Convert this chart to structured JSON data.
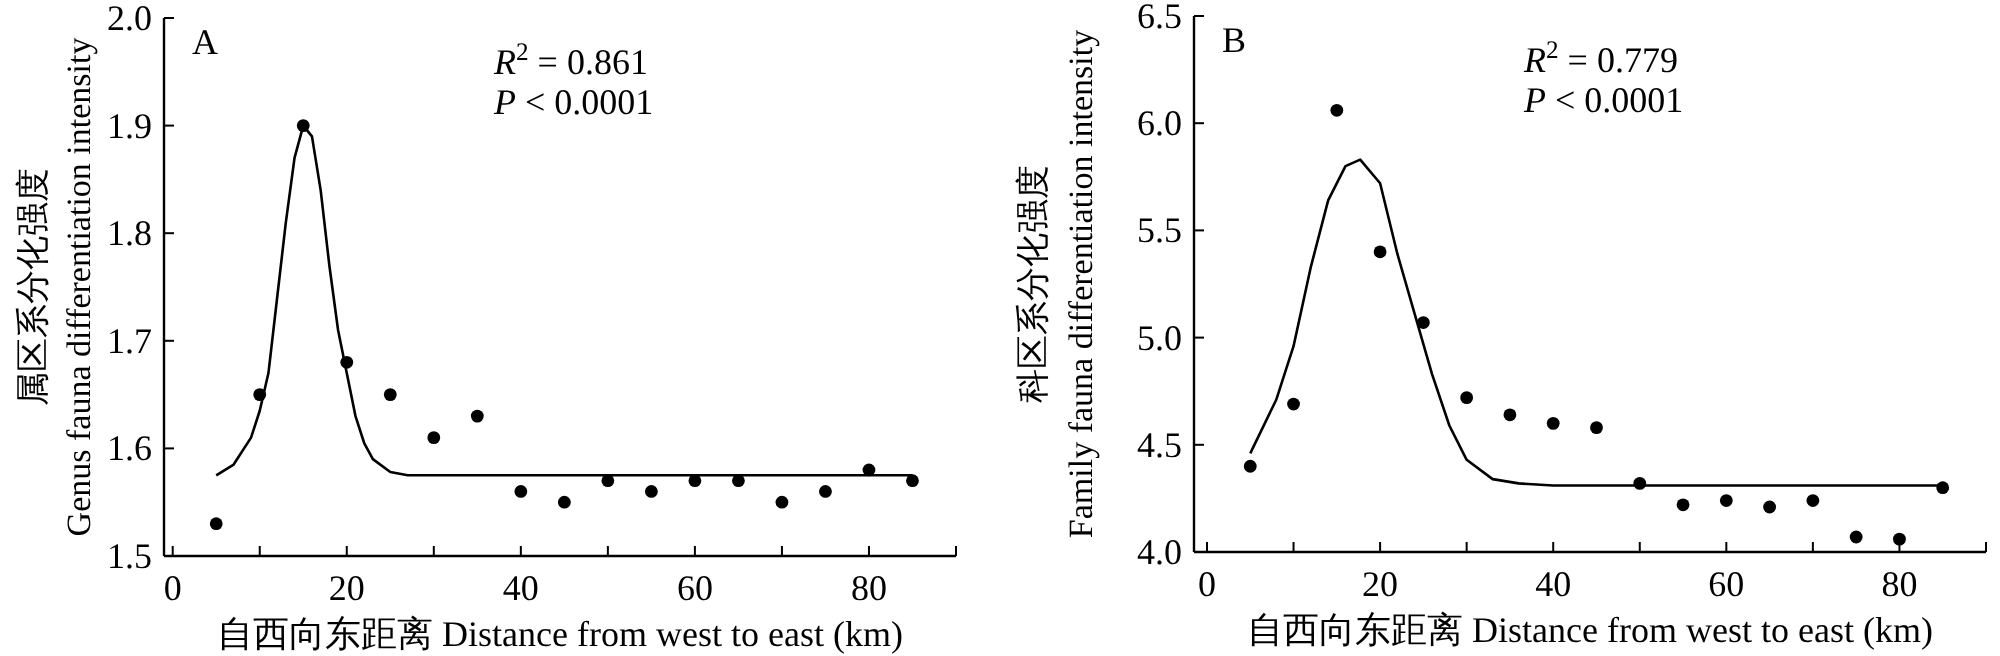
{
  "chart_data": [
    {
      "type": "scatter",
      "xlabel": "自西向东距离 Distance from west to east (km)",
      "ylabel": "属区系分化强度\nGenus fauna differentiation intensity",
      "annotations": [
        "A",
        "*R*$^{2}$ = 0.861",
        "*P* < 0.0001"
      ],
      "xlim": [
        -1,
        90
      ],
      "xticks": [
        0,
        {
          "value": 10,
          "label": null
        },
        20,
        {
          "value": 30,
          "label": null
        },
        40,
        {
          "value": 50,
          "label": null
        },
        60,
        {
          "value": 70,
          "label": null
        },
        80,
        {
          "value": 90,
          "label": null
        }
      ],
      "ylim": [
        1.5,
        2.0
      ],
      "yticks": [
        {
          "value": 1.5,
          "label": "1.5"
        },
        1.6,
        1.7,
        1.8,
        1.9,
        {
          "value": 2.0,
          "label": "2.0"
        }
      ],
      "series": [
        {
          "marker": "circle",
          "color": "#000000",
          "x": [
            5,
            10,
            15,
            20,
            25,
            30,
            35,
            40,
            45,
            50,
            55,
            60,
            65,
            70,
            75,
            80,
            85
          ],
          "values": [
            1.53,
            1.65,
            1.9,
            1.68,
            1.65,
            1.61,
            1.63,
            1.56,
            1.55,
            1.57,
            1.56,
            1.57,
            1.57,
            1.55,
            1.56,
            1.58,
            1.57
          ]
        },
        {
          "type": "line",
          "marker": "none",
          "color": "#000000",
          "x": [
            5,
            7,
            9,
            10,
            11,
            12,
            13,
            14,
            15,
            16,
            17,
            18,
            19,
            20,
            21,
            22,
            23,
            25,
            27,
            40,
            85
          ],
          "values": [
            1.575,
            1.585,
            1.61,
            1.635,
            1.67,
            1.74,
            1.81,
            1.87,
            1.9,
            1.89,
            1.84,
            1.77,
            1.71,
            1.67,
            1.63,
            1.605,
            1.59,
            1.578,
            1.575,
            1.575,
            1.575
          ]
        }
      ]
    },
    {
      "type": "scatter",
      "xlabel": "自西向东距离 Distance from west to east (km)",
      "ylabel": "科区系分化强度\nFamily fauna differentiation intensity",
      "annotations": [
        "B",
        "*R*$^{2}$ = 0.779",
        "*P* < 0.0001"
      ],
      "xlim": [
        -1.5,
        90
      ],
      "xticks": [
        0,
        {
          "value": 10,
          "label": null
        },
        20,
        {
          "value": 30,
          "label": null
        },
        40,
        {
          "value": 50,
          "label": null
        },
        60,
        {
          "value": 70,
          "label": null
        },
        80,
        {
          "value": 90,
          "label": null
        }
      ],
      "ylim": [
        4.0,
        6.5
      ],
      "yticks": [
        {
          "value": 4.0,
          "label": "4.0"
        },
        4.5,
        {
          "value": 5.0,
          "label": "5.0"
        },
        5.5,
        {
          "value": 6.0,
          "label": "6.0"
        },
        6.5
      ],
      "series": [
        {
          "marker": "circle",
          "color": "#000000",
          "x": [
            5,
            10,
            15,
            20,
            25,
            30,
            35,
            40,
            45,
            50,
            55,
            60,
            65,
            70,
            75,
            80,
            85
          ],
          "values": [
            4.4,
            4.69,
            6.06,
            5.4,
            5.07,
            4.72,
            4.64,
            4.6,
            4.58,
            4.32,
            4.22,
            4.24,
            4.21,
            4.24,
            4.07,
            4.06,
            4.3
          ]
        },
        {
          "type": "line",
          "marker": "none",
          "color": "#000000",
          "x": [
            5,
            8,
            10,
            12,
            14,
            16,
            17.7,
            20,
            22,
            24,
            26,
            28,
            30,
            33,
            36,
            40,
            85
          ],
          "values": [
            4.46,
            4.71,
            4.96,
            5.33,
            5.64,
            5.8,
            5.83,
            5.72,
            5.39,
            5.11,
            4.83,
            4.59,
            4.43,
            4.34,
            4.32,
            4.31,
            4.31
          ]
        }
      ]
    }
  ]
}
